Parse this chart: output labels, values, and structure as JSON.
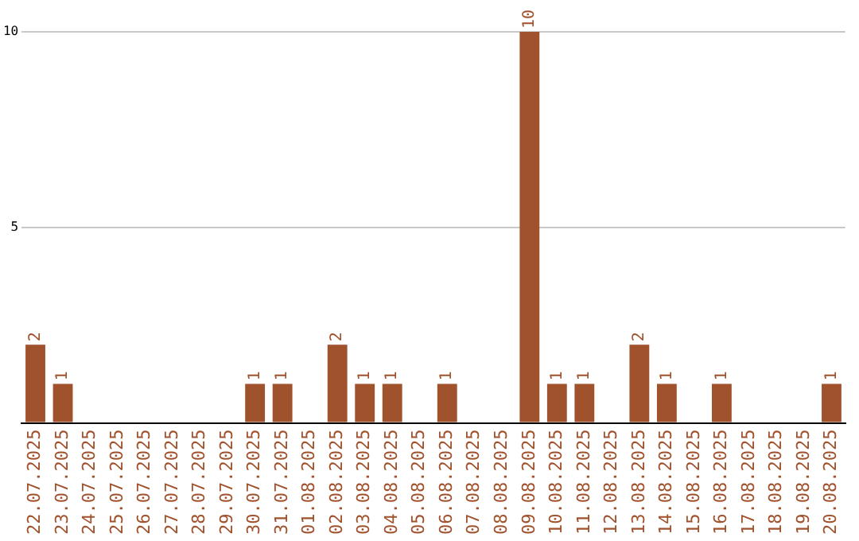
{
  "chart_data": {
    "type": "bar",
    "categories": [
      "22.07.2025",
      "23.07.2025",
      "24.07.2025",
      "25.07.2025",
      "26.07.2025",
      "27.07.2025",
      "28.07.2025",
      "29.07.2025",
      "30.07.2025",
      "31.07.2025",
      "01.08.2025",
      "02.08.2025",
      "03.08.2025",
      "04.08.2025",
      "05.08.2025",
      "06.08.2025",
      "07.08.2025",
      "08.08.2025",
      "09.08.2025",
      "10.08.2025",
      "11.08.2025",
      "12.08.2025",
      "13.08.2025",
      "14.08.2025",
      "15.08.2025",
      "16.08.2025",
      "17.08.2025",
      "18.08.2025",
      "19.08.2025",
      "20.08.2025"
    ],
    "values": [
      2,
      1,
      0,
      0,
      0,
      0,
      0,
      0,
      1,
      1,
      0,
      2,
      1,
      1,
      0,
      1,
      0,
      0,
      10,
      1,
      1,
      0,
      2,
      1,
      0,
      1,
      0,
      0,
      0,
      1
    ],
    "value_labels": [
      "2",
      "1",
      null,
      null,
      null,
      null,
      null,
      null,
      "1",
      "1",
      null,
      "2",
      "1",
      "1",
      null,
      "1",
      null,
      null,
      "10",
      "1",
      "1",
      null,
      "2",
      "1",
      null,
      "1",
      null,
      null,
      null,
      "1"
    ],
    "color": "#a0522d",
    "ylim": [
      0,
      10
    ],
    "yticks": [
      {
        "value": 0,
        "label": null
      },
      5,
      10
    ],
    "grid": "y",
    "legend": false
  }
}
